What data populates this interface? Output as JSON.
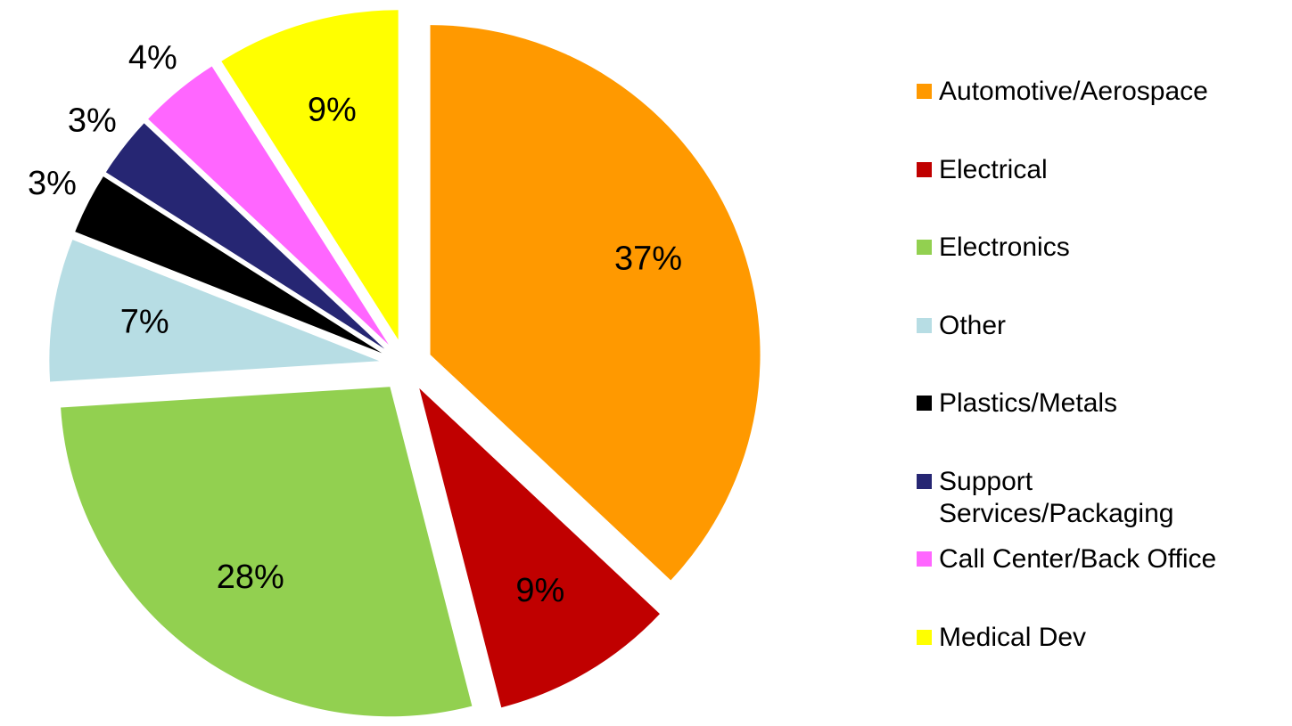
{
  "chart_data": {
    "type": "pie",
    "categories": [
      "Automotive/Aerospace",
      "Electrical",
      "Electronics",
      "Other",
      "Plastics/Metals",
      "Support Services/Packaging",
      "Call Center/Back Office",
      "Medical Dev"
    ],
    "values": [
      37,
      9,
      28,
      7,
      3,
      3,
      4,
      9
    ],
    "value_labels": [
      "37%",
      "9%",
      "28%",
      "7%",
      "3%",
      "3%",
      "4%",
      "9%"
    ],
    "colors": [
      "#ff9900",
      "#c00000",
      "#92d050",
      "#b7dde4",
      "#000000",
      "#262673",
      "#ff66ff",
      "#ffff00"
    ],
    "legend": "right"
  }
}
